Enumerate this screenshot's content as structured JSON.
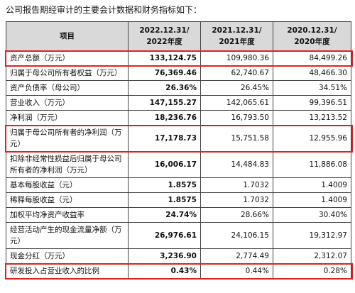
{
  "intro": "公司报告期经审计的主要会计数据和财务指标如下：",
  "table": {
    "header": [
      "项目",
      "2022.12.31/\n2022年度",
      "2021.12.31/\n2021年度",
      "2020.12.31/\n2020年度"
    ],
    "rows": [
      {
        "label": "资产总额（万元）",
        "values": [
          "133,124.75",
          "109,980.36",
          "84,499.26"
        ],
        "highlight": true
      },
      {
        "label": "归属于母公司所有者权益（万元）",
        "values": [
          "76,369.46",
          "62,740.67",
          "48,466.30"
        ],
        "highlight": false
      },
      {
        "label": "资产负债率（母公司）",
        "values": [
          "26.36%",
          "26.45%",
          "34.51%"
        ],
        "highlight": false
      },
      {
        "label": "营业收入（万元）",
        "values": [
          "147,155.27",
          "142,065.61",
          "99,396.51"
        ],
        "highlight": false
      },
      {
        "label": "净利润（万元）",
        "values": [
          "18,236.76",
          "16,793.50",
          "13,213.52"
        ],
        "highlight": false
      },
      {
        "label": "归属于母公司所有者的净利润（万元）",
        "values": [
          "17,178.73",
          "15,751.58",
          "12,955.96"
        ],
        "highlight": true
      },
      {
        "label": "扣除非经常性损益后归属于母公司所有者的净利润（万元）",
        "values": [
          "16,006.17",
          "14,484.83",
          "11,886.08"
        ],
        "highlight": false
      },
      {
        "label": "基本每股收益（元）",
        "values": [
          "1.8575",
          "1.7032",
          "1.4009"
        ],
        "highlight": false
      },
      {
        "label": "稀释每股收益（元）",
        "values": [
          "1.8575",
          "1.7032",
          "1.4009"
        ],
        "highlight": false
      },
      {
        "label": "加权平均净资产收益率",
        "values": [
          "24.74%",
          "28.66%",
          "30.40%"
        ],
        "highlight": false
      },
      {
        "label": "经营活动产生的现金流量净额（万元）",
        "values": [
          "26,976.61",
          "24,106.15",
          "19,312.97"
        ],
        "highlight": false
      },
      {
        "label": "现金分红（万元）",
        "values": [
          "3,236.90",
          "2,774.49",
          "2,312.07"
        ],
        "highlight": false
      },
      {
        "label": "研发投入占营业收入的比例",
        "values": [
          "0.43%",
          "0.44%",
          "0.28%"
        ],
        "highlight": true
      }
    ]
  }
}
